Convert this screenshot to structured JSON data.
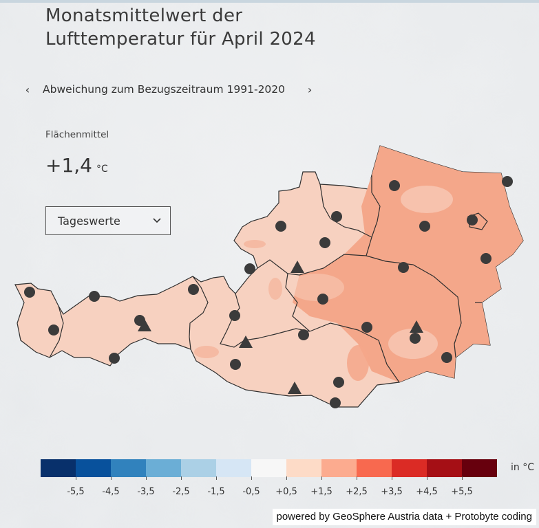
{
  "title": {
    "line1": "Monatsmittelwert der",
    "line2": "Lufttemperatur für April 2024"
  },
  "nav": {
    "prev_icon": "chevron-left-icon",
    "label": "Abweichung zum Bezugszeitraum 1991-2020",
    "next_icon": "chevron-right-icon"
  },
  "area_mean": {
    "label": "Flächenmittel",
    "value": "+1,4",
    "unit": "°C"
  },
  "select": {
    "value": "Tageswerte",
    "icon": "chevron-down-icon"
  },
  "legend": {
    "unit": "in °C",
    "colors": [
      "#08306b",
      "#08519c",
      "#3182bd",
      "#6baed6",
      "#abd0e6",
      "#d6e6f5",
      "#f7f7f7",
      "#fddbc7",
      "#fcab8f",
      "#f8694f",
      "#db2b25",
      "#a50f15",
      "#67000d"
    ],
    "ticks": [
      "-5,5",
      "-4,5",
      "-3,5",
      "-2,5",
      "-1,5",
      "-0,5",
      "+0,5",
      "+1,5",
      "+2,5",
      "+3,5",
      "+4,5",
      "+5,5"
    ]
  },
  "map_colors": {
    "region_light": "#f7d1c0",
    "region_medium": "#f4a78a",
    "border": "#333333",
    "station": "#3b3b3b"
  },
  "credit": "powered by GeoSphere Austria data + Protobyte coding"
}
